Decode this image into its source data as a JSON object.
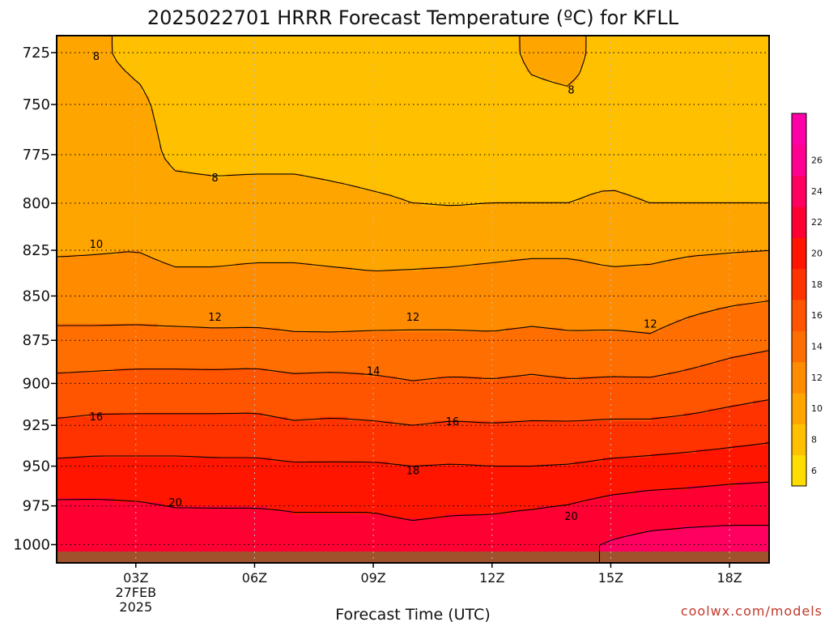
{
  "chart_data": {
    "type": "contour",
    "title": "2025022701 HRRR Forecast Temperature (ºC) for KFLL",
    "xlabel": "Forecast Time (UTC)",
    "ylabel": "",
    "credit": "coolwx.com/models",
    "x_hours": [
      1,
      2,
      3,
      4,
      5,
      6,
      7,
      8,
      9,
      10,
      11,
      12,
      13,
      14,
      15,
      16,
      17,
      18,
      19
    ],
    "xticks": [
      {
        "hour": 3,
        "label": "03Z",
        "date_line1": "27FEB",
        "date_line2": "2025"
      },
      {
        "hour": 6,
        "label": "06Z"
      },
      {
        "hour": 9,
        "label": "09Z"
      },
      {
        "hour": 12,
        "label": "12Z"
      },
      {
        "hour": 15,
        "label": "15Z"
      },
      {
        "hour": 18,
        "label": "18Z"
      }
    ],
    "y_pressure": [
      1000,
      975,
      950,
      925,
      900,
      875,
      850,
      825,
      800,
      775,
      750,
      725
    ],
    "ylim": [
      1012,
      717
    ],
    "yticks": [
      "725",
      "750",
      "775",
      "800",
      "825",
      "850",
      "875",
      "900",
      "925",
      "950",
      "975",
      "1000"
    ],
    "contour_levels": [
      6,
      8,
      10,
      12,
      14,
      16,
      18,
      20,
      22,
      24,
      26
    ],
    "colorbar_labels": [
      "6",
      "8",
      "10",
      "12",
      "14",
      "16",
      "18",
      "20",
      "22",
      "24",
      "26"
    ],
    "colors": [
      "#ffdd00",
      "#ffc000",
      "#ffa500",
      "#ff8c00",
      "#ff6e00",
      "#ff5400",
      "#ff3300",
      "#ff1500",
      "#ff0033",
      "#ff0060",
      "#ff0090",
      "#ff00a8"
    ],
    "ground_color": "#a0522d",
    "contour_labels": [
      {
        "value": "8",
        "hour": 2.0,
        "p": 727
      },
      {
        "value": "8",
        "hour": 5.0,
        "p": 787
      },
      {
        "value": "8",
        "hour": 14.0,
        "p": 743
      },
      {
        "value": "10",
        "hour": 2.0,
        "p": 822
      },
      {
        "value": "12",
        "hour": 5.0,
        "p": 862
      },
      {
        "value": "12",
        "hour": 10.0,
        "p": 862
      },
      {
        "value": "12",
        "hour": 16.0,
        "p": 866
      },
      {
        "value": "14",
        "hour": 9.0,
        "p": 893
      },
      {
        "value": "16",
        "hour": 2.0,
        "p": 920
      },
      {
        "value": "16",
        "hour": 11.0,
        "p": 923
      },
      {
        "value": "18",
        "hour": 10.0,
        "p": 953
      },
      {
        "value": "20",
        "hour": 4.0,
        "p": 973
      },
      {
        "value": "20",
        "hour": 14.0,
        "p": 982
      }
    ],
    "series": [
      {
        "hour": 1,
        "temps": [
          21.0,
          20.3,
          18.4,
          16.3,
          14.5,
          12.4,
          11.2,
          9.8,
          8.5,
          8.4,
          8.2,
          8.1
        ]
      },
      {
        "hour": 2,
        "temps": [
          21.0,
          20.3,
          18.5,
          16.5,
          14.6,
          12.5,
          11.0,
          9.9,
          8.6,
          8.5,
          8.3,
          8.2
        ]
      },
      {
        "hour": 3,
        "temps": [
          20.9,
          20.2,
          18.5,
          16.5,
          14.7,
          12.6,
          10.9,
          10.0,
          8.8,
          8.6,
          8.3,
          7.7
        ]
      },
      {
        "hour": 4,
        "temps": [
          20.6,
          20.0,
          18.5,
          16.5,
          14.7,
          12.6,
          10.7,
          9.6,
          8.6,
          7.7,
          7.5,
          7.3
        ]
      },
      {
        "hour": 5,
        "temps": [
          20.5,
          20.0,
          18.4,
          16.5,
          14.7,
          12.5,
          10.7,
          9.6,
          8.5,
          7.6,
          7.4,
          7.2
        ]
      },
      {
        "hour": 6,
        "temps": [
          20.5,
          20.0,
          18.4,
          16.5,
          14.8,
          12.5,
          10.8,
          9.7,
          8.6,
          7.6,
          7.4,
          7.2
        ]
      },
      {
        "hour": 7,
        "temps": [
          20.5,
          19.9,
          18.2,
          16.2,
          14.5,
          12.3,
          10.8,
          9.7,
          8.6,
          7.6,
          7.3,
          7.1
        ]
      },
      {
        "hour": 8,
        "temps": [
          20.5,
          19.9,
          18.2,
          16.3,
          14.6,
          12.3,
          10.7,
          9.6,
          8.4,
          7.5,
          7.2,
          7.0
        ]
      },
      {
        "hour": 9,
        "temps": [
          20.5,
          19.9,
          18.2,
          16.2,
          14.4,
          12.4,
          10.6,
          9.5,
          8.2,
          7.4,
          7.2,
          7.1
        ]
      },
      {
        "hour": 10,
        "temps": [
          20.5,
          19.7,
          18.0,
          16.0,
          14.1,
          12.4,
          10.7,
          9.5,
          8.0,
          7.4,
          7.2,
          7.1
        ]
      },
      {
        "hour": 11,
        "temps": [
          20.6,
          19.8,
          18.1,
          16.2,
          14.3,
          12.4,
          10.7,
          9.6,
          7.9,
          7.4,
          7.3,
          7.2
        ]
      },
      {
        "hour": 12,
        "temps": [
          20.7,
          19.8,
          18.0,
          16.1,
          14.2,
          12.3,
          10.8,
          9.7,
          8.0,
          7.5,
          7.4,
          7.3
        ]
      },
      {
        "hour": 13,
        "temps": [
          21.0,
          19.9,
          18.0,
          16.2,
          14.4,
          12.5,
          10.9,
          9.8,
          8.0,
          7.6,
          7.6,
          8.3
        ]
      },
      {
        "hour": 14,
        "temps": [
          21.5,
          20.1,
          18.1,
          16.2,
          14.2,
          12.3,
          10.9,
          9.8,
          8.0,
          7.6,
          7.7,
          8.6
        ]
      },
      {
        "hour": 15,
        "temps": [
          22.2,
          20.6,
          18.4,
          16.3,
          14.3,
          12.4,
          10.7,
          9.6,
          8.2,
          7.5,
          7.2,
          7.0
        ]
      },
      {
        "hour": 16,
        "temps": [
          22.6,
          20.9,
          18.6,
          16.3,
          14.3,
          12.2,
          10.9,
          9.6,
          8.0,
          7.4,
          7.1,
          6.9
        ]
      },
      {
        "hour": 17,
        "temps": [
          22.8,
          21.0,
          18.8,
          16.5,
          14.6,
          12.8,
          11.3,
          9.8,
          8.0,
          7.4,
          7.1,
          6.8
        ]
      },
      {
        "hour": 18,
        "temps": [
          22.8,
          21.2,
          19.0,
          16.8,
          15.0,
          13.3,
          11.6,
          9.9,
          8.0,
          7.3,
          6.9,
          6.6
        ]
      },
      {
        "hour": 19,
        "temps": [
          22.8,
          21.2,
          19.2,
          17.1,
          15.3,
          13.6,
          11.8,
          10.0,
          8.0,
          7.2,
          6.5,
          6.6
        ]
      }
    ]
  }
}
